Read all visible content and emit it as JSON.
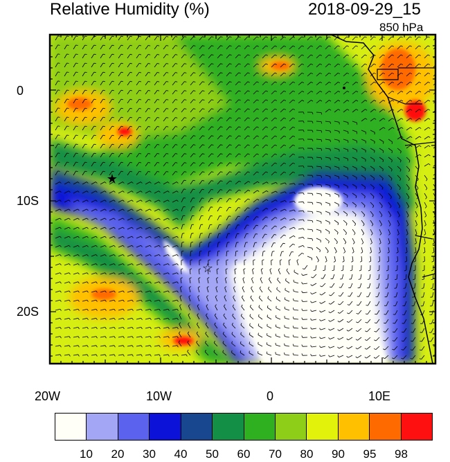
{
  "header": {
    "title": "Relative Humidity (%)",
    "valid_time": "2018-09-29_15",
    "level": "850 hPa"
  },
  "map": {
    "lat_labels": [
      "0",
      "10S",
      "20S"
    ],
    "lon_labels": [
      "20W",
      "10W",
      "0",
      "10E"
    ],
    "markers": [
      {
        "name": "star-marker-1",
        "symbol": "★"
      },
      {
        "name": "star-marker-2",
        "symbol": "☆"
      }
    ],
    "colors": {
      "coast": "#000000",
      "wind_barb": "#000000"
    }
  },
  "colorbar": {
    "labels": [
      "10",
      "20",
      "30",
      "40",
      "50",
      "60",
      "70",
      "80",
      "90",
      "95",
      "98"
    ],
    "colors": [
      "#fffff8",
      "#a3a6f5",
      "#5b63ee",
      "#0d12d8",
      "#18468f",
      "#139045",
      "#2fb020",
      "#8fce18",
      "#e2f20a",
      "#ffc000",
      "#ff6a00",
      "#ff1010"
    ]
  }
}
